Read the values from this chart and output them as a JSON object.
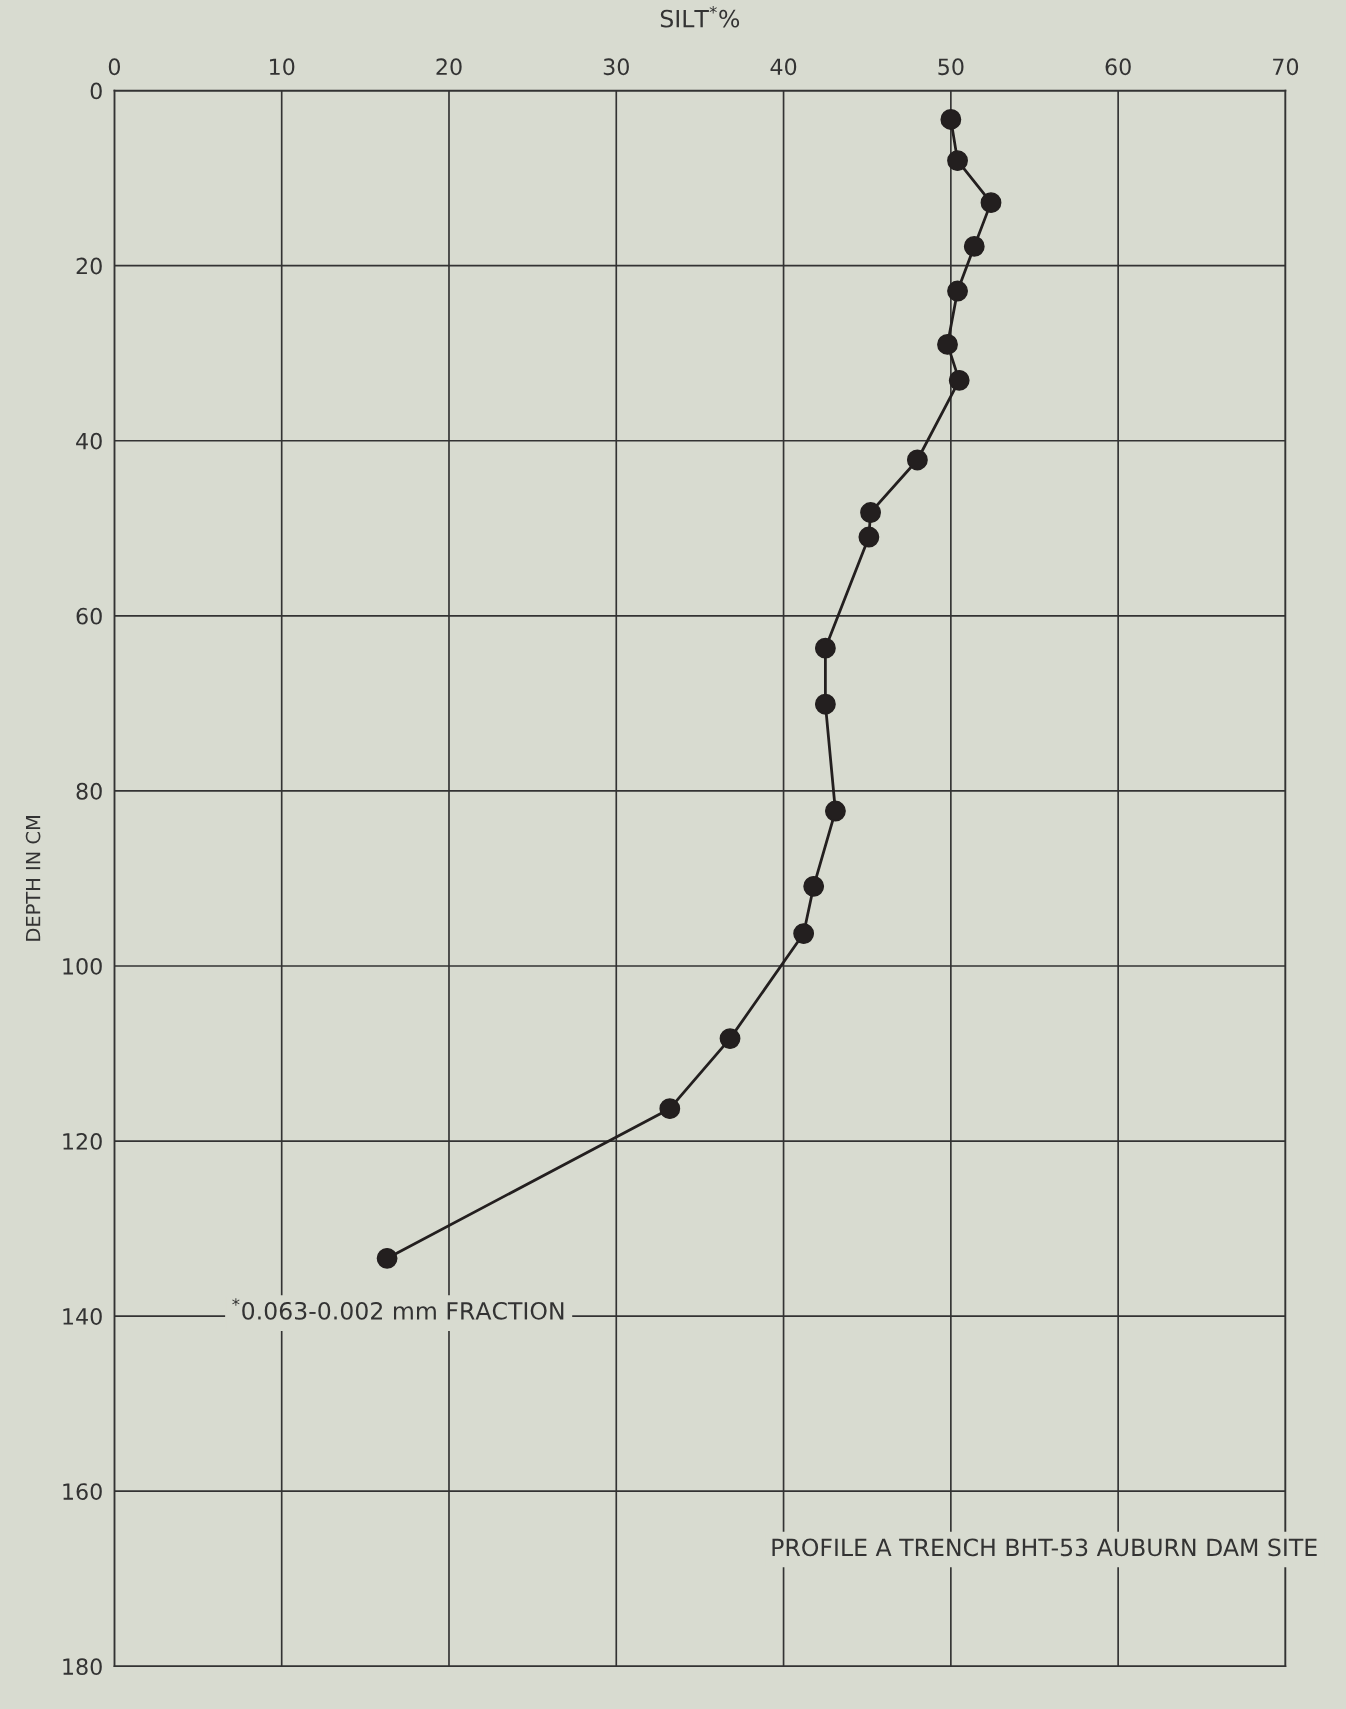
{
  "chart_data": {
    "type": "line",
    "xlabel": "SILT$^{*}$%",
    "ylabel": "DEPTH IN CM",
    "annotations": [
      "$^{*}$0.063-0.002 mm FRACTION",
      "PROFILE A TRENCH BHT-53 AUBURN DAM SITE"
    ],
    "series": [
      {
        "color": "#231f1f",
        "x": [
          50.0,
          50.4,
          52.4,
          51.4,
          50.4,
          49.8,
          50.5,
          48.0,
          45.2,
          45.1,
          42.5,
          42.5,
          43.1,
          41.8,
          41.2,
          36.8,
          33.2,
          16.3
        ],
        "values": [
          3.3,
          8.0,
          12.8,
          17.8,
          22.9,
          29.0,
          33.1,
          42.2,
          48.2,
          51.0,
          63.7,
          70.1,
          82.3,
          90.9,
          96.3,
          108.3,
          116.3,
          133.4
        ]
      }
    ],
    "xlim": [
      0,
      70
    ],
    "xticks": [
      0,
      10,
      20,
      30,
      40,
      50,
      60,
      70
    ],
    "ylim": [
      180,
      0
    ],
    "yticks": [
      0,
      20,
      40,
      60,
      80,
      100,
      120,
      140,
      160,
      180
    ],
    "grid": true,
    "marker": "circle",
    "line_style": "solid"
  }
}
